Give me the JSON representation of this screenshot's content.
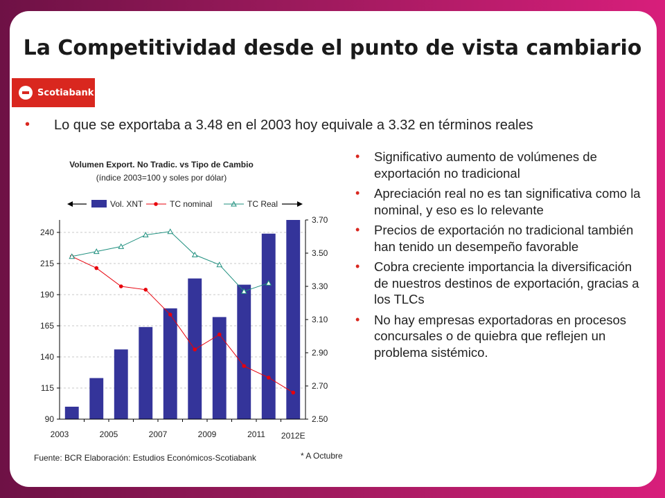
{
  "slide": {
    "title": "La Competitividad desde el punto de vista cambiario",
    "logo_text": "Scotiabank",
    "top_bullet": "Lo que se exportaba a 3.48 en el 2003 hoy equivale a 3.32 en términos reales",
    "bullets": [
      "Significativo aumento de volúmenes de exportación no tradicional",
      "Apreciación real no es tan significativa como la nominal, y eso es lo relevante",
      "Precios de exportación no tradicional también han tenido un desempeño favorable",
      "Cobra creciente importancia la diversificación de nuestros destinos de exportación, gracias a los TLCs",
      "No hay empresas exportadoras en procesos concursales o de quiebra que reflejen un problema sistémico."
    ],
    "colors": {
      "accent": "#d9271f",
      "bar": "#34349a",
      "nominal": "#e8000b",
      "real": "#1e8f7e"
    }
  },
  "chart_data": {
    "type": "bar",
    "title": "Volumen Export. No Tradic. vs Tipo de Cambio",
    "subtitle": "(índice 2003=100 y soles por dólar)",
    "categories": [
      "2003",
      "2004",
      "2005",
      "2006",
      "2007",
      "2008",
      "2009",
      "2010",
      "2011",
      "2012E"
    ],
    "x_tick_labels": [
      "2003",
      "2005",
      "2007",
      "2009",
      "2011",
      "2012E"
    ],
    "series": [
      {
        "name": "Vol. XNT",
        "kind": "bar",
        "axis": "left",
        "values": [
          100,
          123,
          146,
          164,
          179,
          203,
          172,
          198,
          239,
          250
        ]
      },
      {
        "name": "TC nominal",
        "kind": "line",
        "axis": "right",
        "values": [
          3.48,
          3.41,
          3.3,
          3.28,
          3.13,
          2.92,
          3.01,
          2.82,
          2.75,
          2.66
        ]
      },
      {
        "name": "TC Real",
        "kind": "line",
        "axis": "right",
        "values": [
          3.48,
          3.51,
          3.54,
          3.61,
          3.63,
          3.49,
          3.43,
          3.27,
          3.32,
          null
        ]
      }
    ],
    "left_axis": {
      "ylim": [
        90,
        250
      ],
      "ticks": [
        90,
        115,
        140,
        165,
        190,
        215,
        240
      ]
    },
    "right_axis": {
      "ylim": [
        2.5,
        3.7
      ],
      "ticks": [
        "2.50",
        "2.70",
        "2.90",
        "3.10",
        "3.30",
        "3.50",
        "3.70"
      ]
    },
    "grid": true,
    "legend_placement": "top",
    "source": "Fuente: BCR  Elaboración: Estudios Económicos-Scotiabank",
    "note": "* A Octubre"
  }
}
